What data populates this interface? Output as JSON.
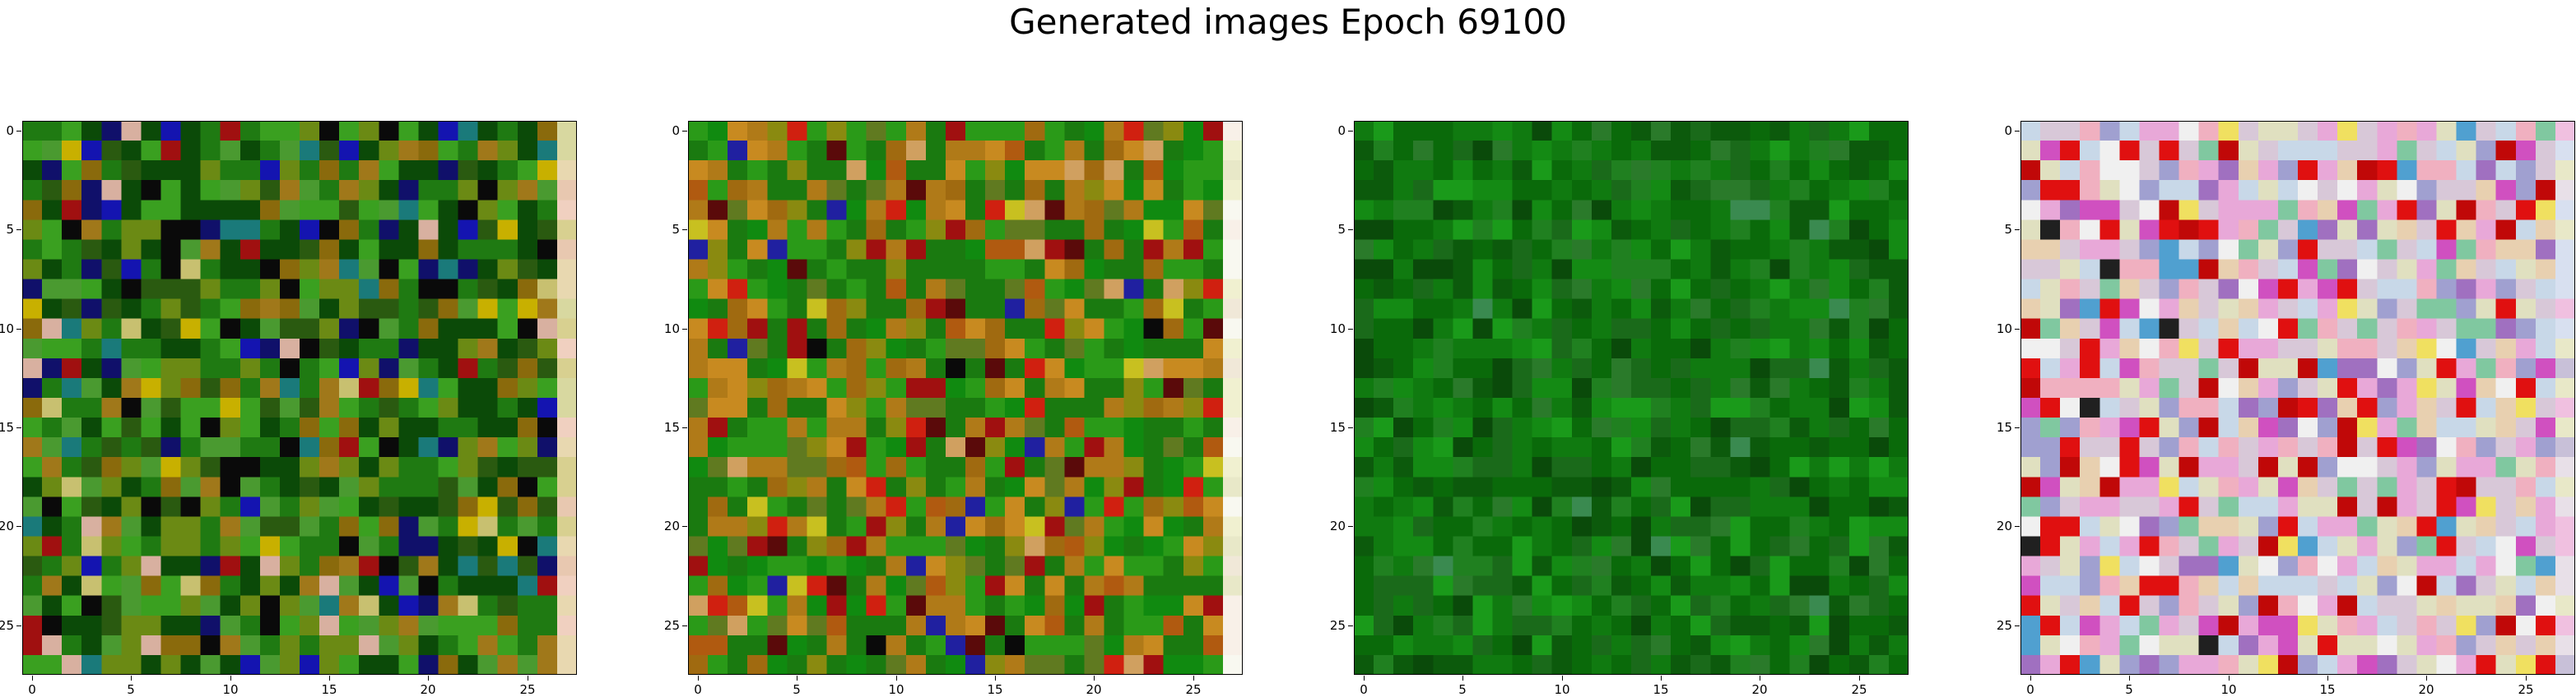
{
  "figure": {
    "title": "Generated images Epoch 69100"
  },
  "chart_data": [
    {
      "type": "heatmap",
      "image_size": 28,
      "xticks": [
        "0",
        "5",
        "10",
        "15",
        "20",
        "25"
      ],
      "yticks": [
        "0",
        "5",
        "10",
        "15",
        "20",
        "25"
      ],
      "xlim": [
        -0.5,
        27.5
      ],
      "ylim": [
        27.5,
        -0.5
      ],
      "grid": false,
      "palette": [
        "#0b4a08",
        "#1f7a12",
        "#3aa020",
        "#6b8a14",
        "#8a6a0c",
        "#a0781a",
        "#0a0a0a",
        "#10106a",
        "#1414b0",
        "#1a7a7a",
        "#a01010",
        "#c8b000",
        "#c8c070",
        "#d8b0a0",
        "#4a9a30",
        "#2a5a10"
      ],
      "weights": [
        20,
        16,
        10,
        10,
        6,
        4,
        6,
        4,
        3,
        3,
        2,
        2,
        2,
        2,
        8,
        8
      ],
      "right_edge": [
        "#d8d8a0",
        "#e8d8b0",
        "#f0d0c0",
        "#e8c8b0",
        "#d8d090"
      ],
      "seed": 11
    },
    {
      "type": "heatmap",
      "image_size": 28,
      "xticks": [
        "0",
        "5",
        "10",
        "15",
        "20",
        "25"
      ],
      "yticks": [
        "0",
        "5",
        "10",
        "15",
        "20",
        "25"
      ],
      "xlim": [
        -0.5,
        27.5
      ],
      "ylim": [
        27.5,
        -0.5
      ],
      "grid": false,
      "palette": [
        "#1a7a10",
        "#2a9a18",
        "#108a10",
        "#b07a18",
        "#c88a20",
        "#a06a10",
        "#8a8a10",
        "#c8c020",
        "#a01010",
        "#d02010",
        "#5a0a0a",
        "#2020a0",
        "#0a0a0a",
        "#607a20",
        "#d0a060",
        "#b05a10"
      ],
      "weights": [
        22,
        16,
        10,
        10,
        8,
        6,
        6,
        3,
        4,
        3,
        2,
        2,
        1,
        6,
        3,
        4
      ],
      "right_edge": [
        "#f0f0d0",
        "#f8f0e8",
        "#f0e8d8",
        "#f8f8f0",
        "#e8e8c8"
      ],
      "seed": 23
    },
    {
      "type": "heatmap",
      "image_size": 28,
      "xticks": [
        "0",
        "5",
        "10",
        "15",
        "20",
        "25"
      ],
      "yticks": [
        "0",
        "5",
        "10",
        "15",
        "20",
        "25"
      ],
      "xlim": [
        -0.5,
        27.5
      ],
      "ylim": [
        27.5,
        -0.5
      ],
      "grid": false,
      "palette": [
        "#0a6a0a",
        "#107a10",
        "#0c5a0c",
        "#148a14",
        "#1a9a1a",
        "#0a4a0a",
        "#2a7a2a",
        "#3a8a50",
        "#1a6a1a",
        "#208020"
      ],
      "weights": [
        20,
        18,
        12,
        12,
        6,
        8,
        6,
        2,
        10,
        10
      ],
      "right_edge": [
        "#0a6a0a",
        "#107a10",
        "#0c5a0c",
        "#148a14",
        "#0a6a0a"
      ],
      "seed": 37
    },
    {
      "type": "heatmap",
      "image_size": 28,
      "xticks": [
        "0",
        "5",
        "10",
        "15",
        "20",
        "25"
      ],
      "yticks": [
        "0",
        "5",
        "10",
        "15",
        "20",
        "25"
      ],
      "xlim": [
        -0.5,
        27.5
      ],
      "ylim": [
        27.5,
        -0.5
      ],
      "grid": false,
      "palette": [
        "#d8c8d8",
        "#e8a8d8",
        "#c8d8e8",
        "#e0e0c0",
        "#f0f0f0",
        "#e01010",
        "#c00808",
        "#f0b0c0",
        "#a0a0d0",
        "#80c8a0",
        "#a070c0",
        "#f0e060",
        "#d050c0",
        "#202020",
        "#50a0d0",
        "#e8d0b0"
      ],
      "weights": [
        14,
        10,
        10,
        10,
        8,
        8,
        5,
        8,
        6,
        5,
        4,
        3,
        4,
        1,
        3,
        8
      ],
      "right_edge": [
        "#e8e0e8",
        "#f0c0e0",
        "#d8e0f0",
        "#e8e8c8",
        "#c8c0d8"
      ],
      "seed": 53
    }
  ]
}
